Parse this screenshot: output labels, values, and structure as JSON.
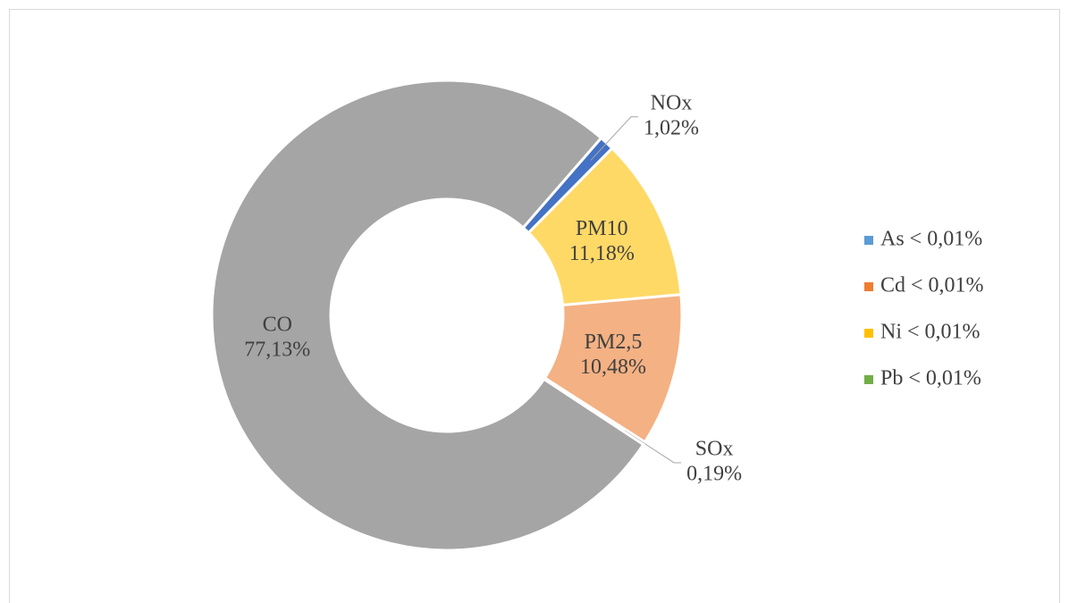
{
  "chart_data": {
    "type": "donut",
    "slices": [
      {
        "name": "NOx",
        "value": 1.02,
        "value_label": "1,02%",
        "color": "#4472c4"
      },
      {
        "name": "PM10",
        "value": 11.18,
        "value_label": "11,18%",
        "color": "#ffd966"
      },
      {
        "name": "PM2,5",
        "value": 10.48,
        "value_label": "10,48%",
        "color": "#f4b183"
      },
      {
        "name": "SOx",
        "value": 0.19,
        "value_label": "0,19%",
        "color": "#c55a11"
      },
      {
        "name": "CO",
        "value": 77.13,
        "value_label": "77,13%",
        "color": "#a5a5a5"
      }
    ],
    "legend": [
      {
        "label": "As < 0,01%",
        "color": "#5b9bd5"
      },
      {
        "label": "Cd < 0,01%",
        "color": "#ed7d31"
      },
      {
        "label": "Ni < 0,01%",
        "color": "#ffc000"
      },
      {
        "label": "Pb < 0,01%",
        "color": "#70ad47"
      }
    ],
    "start_angle": 41,
    "legend_position": "right"
  }
}
